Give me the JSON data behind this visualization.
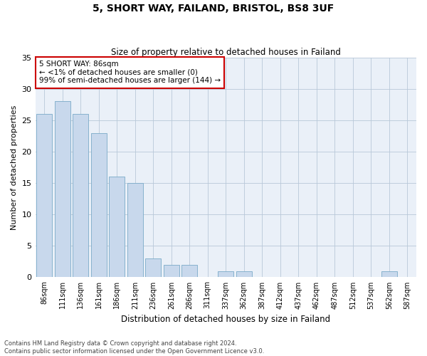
{
  "title": "5, SHORT WAY, FAILAND, BRISTOL, BS8 3UF",
  "subtitle": "Size of property relative to detached houses in Failand",
  "xlabel": "Distribution of detached houses by size in Failand",
  "ylabel": "Number of detached properties",
  "categories": [
    "86sqm",
    "111sqm",
    "136sqm",
    "161sqm",
    "186sqm",
    "211sqm",
    "236sqm",
    "261sqm",
    "286sqm",
    "311sqm",
    "337sqm",
    "362sqm",
    "387sqm",
    "412sqm",
    "437sqm",
    "462sqm",
    "487sqm",
    "512sqm",
    "537sqm",
    "562sqm",
    "587sqm"
  ],
  "values": [
    26,
    28,
    26,
    23,
    16,
    15,
    3,
    2,
    2,
    0,
    1,
    1,
    0,
    0,
    0,
    0,
    0,
    0,
    0,
    1,
    0
  ],
  "bar_color": "#c8d8ec",
  "bar_edge_color": "#7aaac8",
  "highlight_index": 0,
  "annotation_box_edge_color": "#cc0000",
  "annotation_text_line1": "5 SHORT WAY: 86sqm",
  "annotation_text_line2": "← <1% of detached houses are smaller (0)",
  "annotation_text_line3": "99% of semi-detached houses are larger (144) →",
  "ylim": [
    0,
    35
  ],
  "yticks": [
    0,
    5,
    10,
    15,
    20,
    25,
    30,
    35
  ],
  "bg_color": "#eaf0f8",
  "footer_line1": "Contains HM Land Registry data © Crown copyright and database right 2024.",
  "footer_line2": "Contains public sector information licensed under the Open Government Licence v3.0."
}
